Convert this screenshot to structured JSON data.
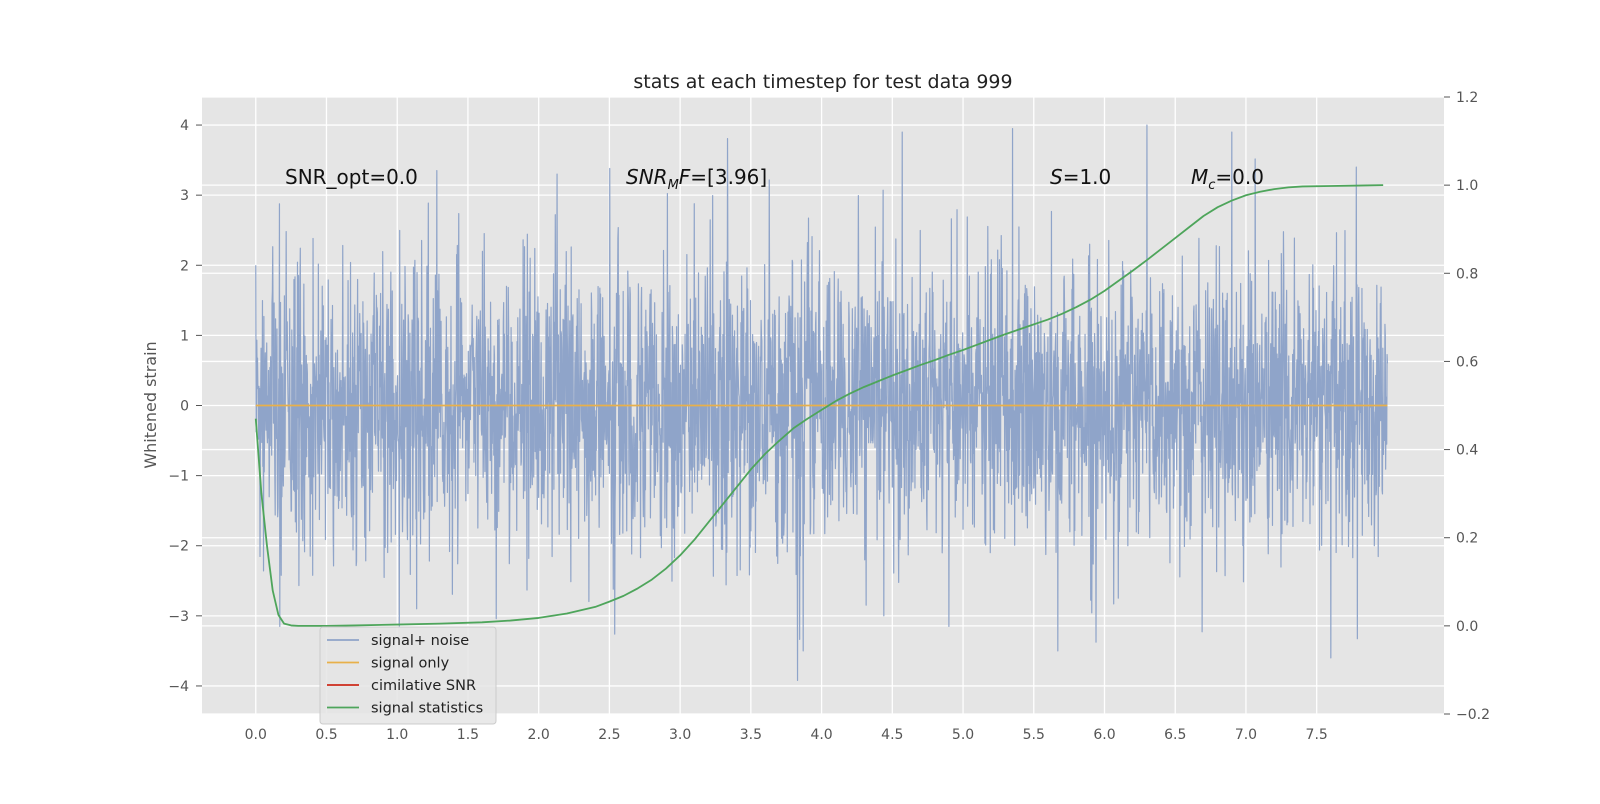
{
  "chart_data": {
    "type": "line",
    "title": "stats at each timestep for test data 999",
    "ylabel": "Whitened strain",
    "xlabel": "",
    "xlim": [
      -0.38,
      8.4
    ],
    "ylim": [
      -4.4,
      4.4
    ],
    "y2lim": [
      -0.2,
      1.2
    ],
    "xticks": [
      "0.0",
      "0.5",
      "1.0",
      "1.5",
      "2.0",
      "2.5",
      "3.0",
      "3.5",
      "4.0",
      "4.5",
      "5.0",
      "5.5",
      "6.0",
      "6.5",
      "7.0",
      "7.5"
    ],
    "yticks": [
      "−4",
      "−3",
      "−2",
      "−1",
      "0",
      "1",
      "2",
      "3",
      "4"
    ],
    "y2ticks": [
      "−0.2",
      "0.0",
      "0.2",
      "0.4",
      "0.6",
      "0.8",
      "1.0",
      "1.2"
    ],
    "grid": true,
    "legend_position": "lower-left",
    "annotations": {
      "snr_opt": "SNR_opt=0.0",
      "snr_mf_base": "SNR",
      "snr_mf_sub": "M",
      "snr_mf_tail": "F=[3.96]",
      "s_var": "S",
      "s_tail": "=1.0",
      "mc_var": "M",
      "mc_sub": "c",
      "mc_tail": "=0.0"
    },
    "series": [
      {
        "name": "signal+ noise",
        "color": "#8fa4c9",
        "description_of_shape": "dense white-noise trace spanning t=0 to 8.0",
        "noise": {
          "t_start": 0.0,
          "t_end": 8.0,
          "std": 1.0,
          "min": -3.95,
          "max": 4.0,
          "notable_peaks": [
            {
              "x": 0.0,
              "y": 2.0
            },
            {
              "x": 1.28,
              "y": 3.35
            },
            {
              "x": 2.13,
              "y": 3.3
            },
            {
              "x": 3.83,
              "y": 3.35
            },
            {
              "x": 4.57,
              "y": 3.9
            },
            {
              "x": 5.35,
              "y": 3.95
            },
            {
              "x": 6.3,
              "y": 4.0
            },
            {
              "x": 6.9,
              "y": 3.9
            },
            {
              "x": 7.78,
              "y": 3.4
            },
            {
              "x": 3.83,
              "y": -3.92
            },
            {
              "x": 3.87,
              "y": -3.5
            },
            {
              "x": 5.67,
              "y": -3.5
            },
            {
              "x": 7.6,
              "y": -3.6
            },
            {
              "x": 0.17,
              "y": -3.15
            },
            {
              "x": 4.9,
              "y": -3.15
            }
          ]
        }
      },
      {
        "name": "signal only",
        "color": "#e8b04a",
        "x": [
          0.0,
          8.0
        ],
        "y": [
          0.0,
          0.0
        ]
      },
      {
        "name": "cimilative SNR",
        "color": "#cc2a1a",
        "x": [],
        "y": []
      },
      {
        "name": "signal statistics",
        "color": "#4ea55b",
        "axis": "right",
        "x": [
          0.0,
          0.04,
          0.08,
          0.12,
          0.16,
          0.2,
          0.25,
          0.3,
          0.4,
          0.5,
          0.7,
          1.0,
          1.3,
          1.6,
          1.8,
          2.0,
          2.2,
          2.4,
          2.5,
          2.6,
          2.7,
          2.8,
          2.9,
          3.0,
          3.1,
          3.2,
          3.3,
          3.4,
          3.5,
          3.6,
          3.7,
          3.8,
          3.9,
          4.0,
          4.1,
          4.2,
          4.3,
          4.4,
          4.5,
          4.6,
          4.7,
          4.8,
          4.9,
          5.0,
          5.1,
          5.2,
          5.3,
          5.4,
          5.5,
          5.6,
          5.7,
          5.8,
          5.9,
          6.0,
          6.1,
          6.2,
          6.3,
          6.4,
          6.5,
          6.6,
          6.7,
          6.8,
          6.9,
          7.0,
          7.1,
          7.2,
          7.3,
          7.4,
          7.6,
          7.8,
          7.97
        ],
        "y": [
          0.47,
          0.3,
          0.18,
          0.08,
          0.025,
          0.005,
          0.001,
          0.0,
          0.0,
          0.0,
          0.001,
          0.003,
          0.005,
          0.008,
          0.012,
          0.018,
          0.028,
          0.043,
          0.055,
          0.068,
          0.085,
          0.105,
          0.13,
          0.16,
          0.195,
          0.235,
          0.275,
          0.315,
          0.355,
          0.39,
          0.42,
          0.448,
          0.47,
          0.49,
          0.51,
          0.527,
          0.542,
          0.555,
          0.568,
          0.58,
          0.592,
          0.603,
          0.615,
          0.626,
          0.638,
          0.65,
          0.662,
          0.673,
          0.684,
          0.695,
          0.708,
          0.723,
          0.74,
          0.76,
          0.783,
          0.806,
          0.83,
          0.855,
          0.88,
          0.905,
          0.93,
          0.95,
          0.965,
          0.977,
          0.985,
          0.991,
          0.995,
          0.997,
          0.998,
          0.999,
          1.0
        ]
      }
    ]
  }
}
